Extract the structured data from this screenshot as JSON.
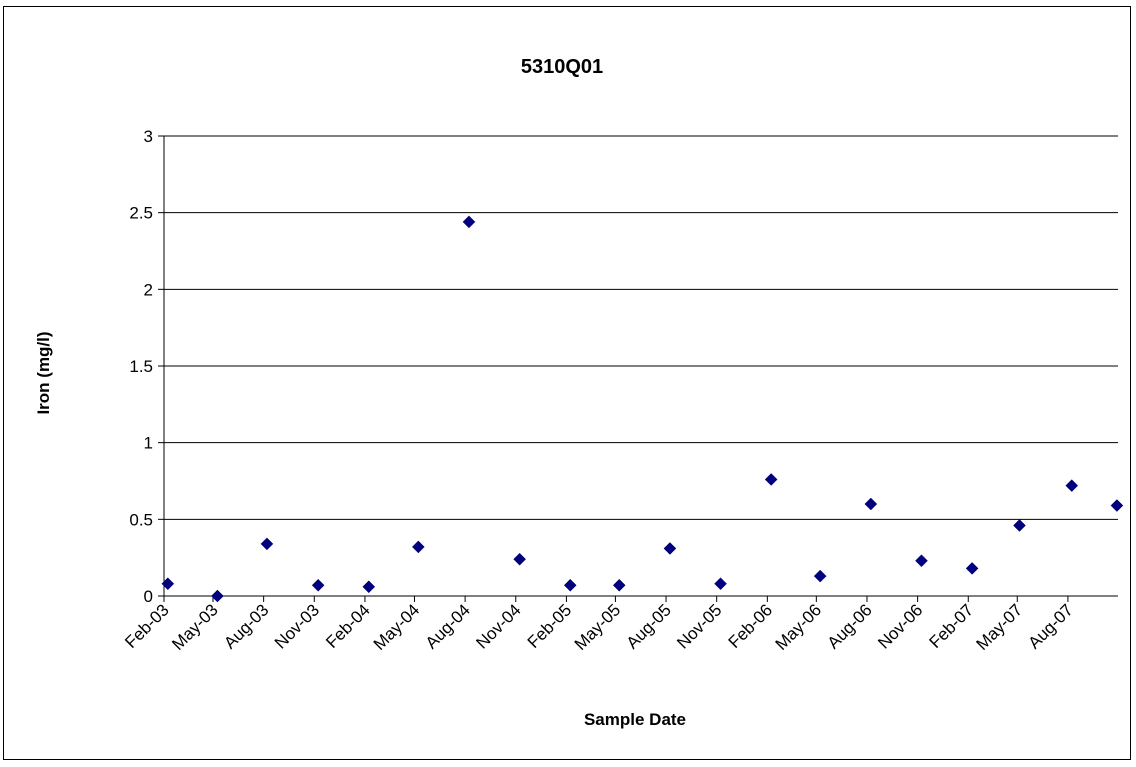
{
  "chart_data": {
    "type": "scatter",
    "title": "5310Q01",
    "xlabel": "Sample Date",
    "ylabel": "Iron (mg/l)",
    "ylim": [
      0,
      3
    ],
    "yticks": [
      "0",
      "0.5",
      "1",
      "1.5",
      "2",
      "2.5",
      "3"
    ],
    "xlim": [
      "2003-02-01",
      "2007-10-31"
    ],
    "xticks": [
      {
        "date": "2003-02-01",
        "label": "Feb-03"
      },
      {
        "date": "2003-05-01",
        "label": "May-03"
      },
      {
        "date": "2003-08-01",
        "label": "Aug-03"
      },
      {
        "date": "2003-11-01",
        "label": "Nov-03"
      },
      {
        "date": "2004-02-01",
        "label": "Feb-04"
      },
      {
        "date": "2004-05-01",
        "label": "May-04"
      },
      {
        "date": "2004-08-01",
        "label": "Aug-04"
      },
      {
        "date": "2004-11-01",
        "label": "Nov-04"
      },
      {
        "date": "2005-02-01",
        "label": "Feb-05"
      },
      {
        "date": "2005-05-01",
        "label": "May-05"
      },
      {
        "date": "2005-08-01",
        "label": "Aug-05"
      },
      {
        "date": "2005-11-01",
        "label": "Nov-05"
      },
      {
        "date": "2006-02-01",
        "label": "Feb-06"
      },
      {
        "date": "2006-05-01",
        "label": "May-06"
      },
      {
        "date": "2006-08-01",
        "label": "Aug-06"
      },
      {
        "date": "2006-11-01",
        "label": "Nov-06"
      },
      {
        "date": "2007-02-01",
        "label": "Feb-07"
      },
      {
        "date": "2007-05-01",
        "label": "May-07"
      },
      {
        "date": "2007-08-01",
        "label": "Aug-07"
      }
    ],
    "grid": "horizontal",
    "legend": "none",
    "marker": "diamond",
    "marker_color": "#000080",
    "series": [
      {
        "points": [
          {
            "x": "2003-02-08",
            "y": 0.08
          },
          {
            "x": "2003-05-09",
            "y": 0.0
          },
          {
            "x": "2003-08-07",
            "y": 0.34
          },
          {
            "x": "2003-11-08",
            "y": 0.07
          },
          {
            "x": "2004-02-08",
            "y": 0.06
          },
          {
            "x": "2004-05-08",
            "y": 0.32
          },
          {
            "x": "2004-08-08",
            "y": 2.44
          },
          {
            "x": "2004-11-08",
            "y": 0.24
          },
          {
            "x": "2005-02-08",
            "y": 0.07
          },
          {
            "x": "2005-05-08",
            "y": 0.07
          },
          {
            "x": "2005-08-08",
            "y": 0.31
          },
          {
            "x": "2005-11-08",
            "y": 0.08
          },
          {
            "x": "2006-02-08",
            "y": 0.76
          },
          {
            "x": "2006-05-08",
            "y": 0.13
          },
          {
            "x": "2006-08-08",
            "y": 0.6
          },
          {
            "x": "2006-11-08",
            "y": 0.23
          },
          {
            "x": "2007-02-08",
            "y": 0.18
          },
          {
            "x": "2007-05-05",
            "y": 0.46
          },
          {
            "x": "2007-08-08",
            "y": 0.72
          },
          {
            "x": "2007-10-29",
            "y": 0.59
          }
        ]
      }
    ]
  }
}
